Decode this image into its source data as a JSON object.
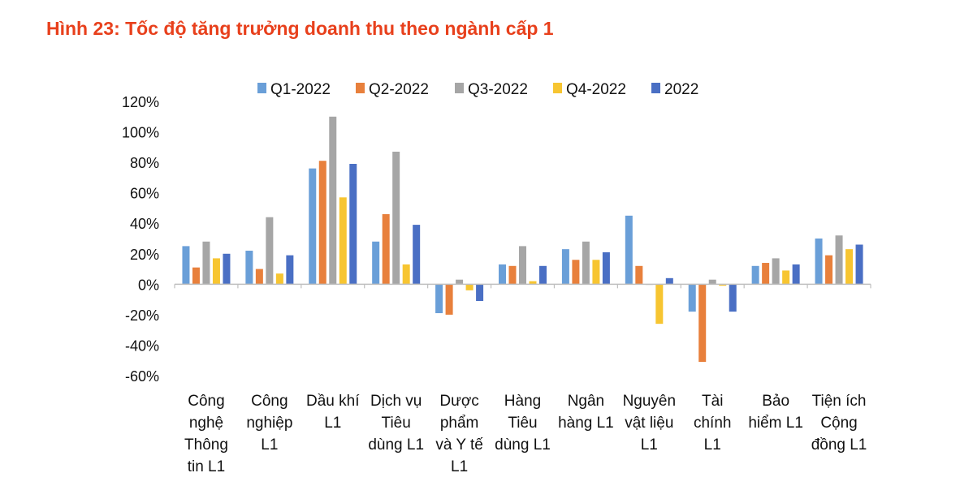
{
  "figure": {
    "title": "Hình 23: Tốc độ tăng trưởng doanh thu theo ngành cấp 1"
  },
  "chart_data": {
    "type": "bar",
    "title": "",
    "xlabel": "",
    "ylabel": "",
    "ylim": [
      -0.6,
      1.2
    ],
    "yticks": [
      1.2,
      1.0,
      0.8,
      0.6,
      0.4,
      0.2,
      0.0,
      -0.2,
      -0.4,
      -0.6
    ],
    "ytick_labels": [
      "120%",
      "100%",
      "80%",
      "60%",
      "40%",
      "20%",
      "0%",
      "-20%",
      "-40%",
      "-60%"
    ],
    "legend_position": "top",
    "categories": [
      [
        "Công",
        "nghệ",
        "Thông",
        "tin L1"
      ],
      [
        "Công",
        "nghiệp",
        "L1"
      ],
      [
        "Dầu khí",
        "L1"
      ],
      [
        "Dịch vụ",
        "Tiêu",
        "dùng L1"
      ],
      [
        "Dược",
        "phẩm",
        "và Y tế",
        "L1"
      ],
      [
        "Hàng",
        "Tiêu",
        "dùng L1"
      ],
      [
        "Ngân",
        "hàng L1"
      ],
      [
        "Nguyên",
        "vật liệu",
        "L1"
      ],
      [
        "Tài",
        "chính",
        "L1"
      ],
      [
        "Bảo",
        "hiểm L1"
      ],
      [
        "Tiện ích",
        "Cộng",
        "đồng L1"
      ]
    ],
    "series": [
      {
        "name": "Q1-2022",
        "color": "#6a9fd8",
        "values": [
          0.25,
          0.22,
          0.76,
          0.28,
          -0.19,
          0.13,
          0.23,
          0.45,
          -0.18,
          0.12,
          0.3
        ]
      },
      {
        "name": "Q2-2022",
        "color": "#e8803c",
        "values": [
          0.11,
          0.1,
          0.81,
          0.46,
          -0.2,
          0.12,
          0.16,
          0.12,
          -0.51,
          0.14,
          0.19
        ]
      },
      {
        "name": "Q3-2022",
        "color": "#a6a6a6",
        "values": [
          0.28,
          0.44,
          1.1,
          0.87,
          0.03,
          0.25,
          0.28,
          0.0,
          0.03,
          0.17,
          0.32
        ]
      },
      {
        "name": "Q4-2022",
        "color": "#f7c531",
        "values": [
          0.17,
          0.07,
          0.57,
          0.13,
          -0.04,
          0.02,
          0.16,
          -0.26,
          -0.01,
          0.09,
          0.23
        ]
      },
      {
        "name": "2022",
        "color": "#4a6fc4",
        "values": [
          0.2,
          0.19,
          0.79,
          0.39,
          -0.11,
          0.12,
          0.21,
          0.04,
          -0.18,
          0.13,
          0.26
        ]
      }
    ]
  }
}
